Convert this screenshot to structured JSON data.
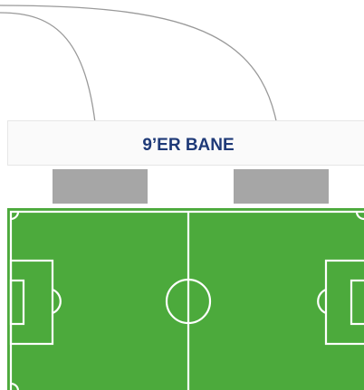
{
  "banner": {
    "title": "9’ER BANE"
  }
}
